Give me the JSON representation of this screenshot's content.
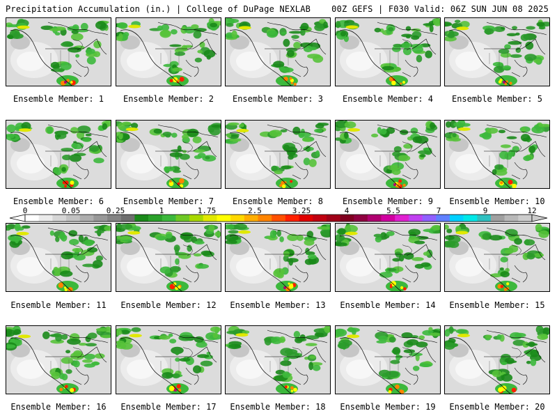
{
  "header": {
    "left": "Precipitation Accumulation (in.) | College of DuPage NEXLAB",
    "right": "00Z GEFS | F030 Valid: 06Z SUN JUN 08 2025"
  },
  "panels": [
    {
      "label": "Ensemble Member: 1"
    },
    {
      "label": "Ensemble Member: 2"
    },
    {
      "label": "Ensemble Member: 3"
    },
    {
      "label": "Ensemble Member: 4"
    },
    {
      "label": "Ensemble Member: 5"
    },
    {
      "label": "Ensemble Member: 6"
    },
    {
      "label": "Ensemble Member: 7"
    },
    {
      "label": "Ensemble Member: 8"
    },
    {
      "label": "Ensemble Member: 9"
    },
    {
      "label": "Ensemble Member: 10"
    },
    {
      "label": "Ensemble Member: 11"
    },
    {
      "label": "Ensemble Member: 12"
    },
    {
      "label": "Ensemble Member: 13"
    },
    {
      "label": "Ensemble Member: 14"
    },
    {
      "label": "Ensemble Member: 15"
    },
    {
      "label": "Ensemble Member: 16"
    },
    {
      "label": "Ensemble Member: 17"
    },
    {
      "label": "Ensemble Member: 18"
    },
    {
      "label": "Ensemble Member: 19"
    },
    {
      "label": "Ensemble Member: 20"
    }
  ],
  "colorbar": {
    "labels": [
      "0",
      "0.05",
      "0.25",
      "1",
      "1.75",
      "2.5",
      "3.25",
      "4",
      "5.5",
      "7",
      "9",
      "12"
    ],
    "colors": [
      "#ffffff",
      "#ebebeb",
      "#d6d6d6",
      "#c2c2c2",
      "#adadad",
      "#989898",
      "#848484",
      "#6e6e6e",
      "#1a8a1a",
      "#2aa12a",
      "#3cb83c",
      "#6ec825",
      "#a8d800",
      "#e0e800",
      "#ffff00",
      "#ffd800",
      "#ffae00",
      "#ff8400",
      "#ff5000",
      "#ff2000",
      "#e00000",
      "#c00010",
      "#a00018",
      "#800020",
      "#900040",
      "#b00070",
      "#d000a0",
      "#e020d0",
      "#c040f0",
      "#9060ff",
      "#6080ff",
      "#00d0ff",
      "#00e8e8",
      "#30c0c0",
      "#a0a0a0",
      "#b8b8b8",
      "#cccccc"
    ]
  }
}
